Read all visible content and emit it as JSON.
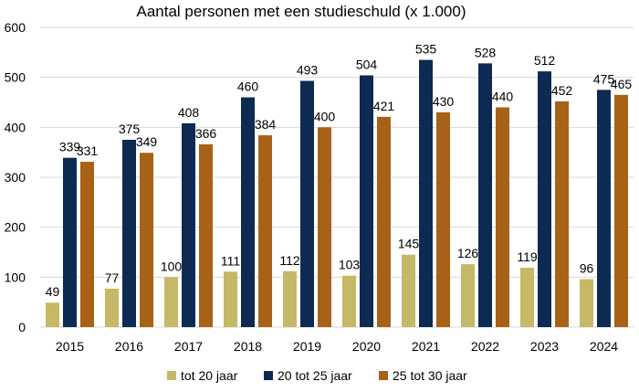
{
  "chart_data": {
    "type": "bar",
    "title": "Aantal personen met een studieschuld (x 1.000)",
    "xlabel": "",
    "ylabel": "",
    "categories": [
      "2015",
      "2016",
      "2017",
      "2018",
      "2019",
      "2020",
      "2021",
      "2022",
      "2023",
      "2024"
    ],
    "series": [
      {
        "name": "tot 20 jaar",
        "color": "#c5b866",
        "values": [
          49,
          77,
          100,
          111,
          112,
          103,
          145,
          126,
          119,
          96
        ]
      },
      {
        "name": "20 tot 25 jaar",
        "color": "#0d2b52",
        "values": [
          339,
          375,
          408,
          460,
          493,
          504,
          535,
          528,
          512,
          475
        ]
      },
      {
        "name": "25 tot 30 jaar",
        "color": "#a86218",
        "values": [
          331,
          349,
          366,
          384,
          400,
          421,
          430,
          440,
          452,
          465
        ]
      }
    ],
    "ylim": [
      0,
      600
    ],
    "yticks": [
      0,
      100,
      200,
      300,
      400,
      500,
      600
    ],
    "grid": true,
    "legend_position": "bottom"
  }
}
